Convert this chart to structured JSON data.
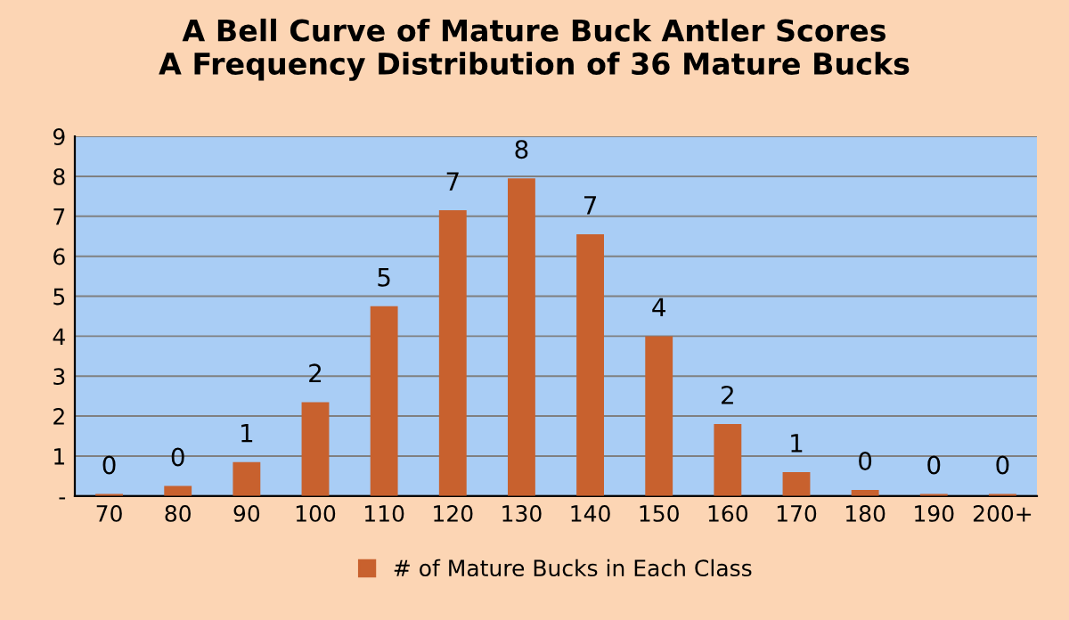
{
  "chart_data": {
    "type": "bar",
    "title": "A Bell Curve of Mature Buck Antler Scores\nA Frequency Distribution of 36 Mature Bucks",
    "categories": [
      "70",
      "80",
      "90",
      "100",
      "110",
      "120",
      "130",
      "140",
      "150",
      "160",
      "170",
      "180",
      "190",
      "200+"
    ],
    "series": [
      {
        "name": "# of Mature Bucks in Each Class",
        "color": "#c8612e",
        "values": [
          0.05,
          0.25,
          0.85,
          2.35,
          4.75,
          7.15,
          7.95,
          6.55,
          4.0,
          1.8,
          0.6,
          0.15,
          0.05,
          0.05
        ],
        "value_labels": [
          "0",
          "0",
          "1",
          "2",
          "5",
          "7",
          "8",
          "7",
          "4",
          "2",
          "1",
          "0",
          "0",
          "0"
        ]
      }
    ],
    "ylim": [
      0,
      9
    ],
    "yticks": [
      {
        "value": 0,
        "label": "-"
      },
      1,
      2,
      3,
      4,
      5,
      6,
      7,
      8,
      9
    ],
    "grid": "y",
    "legend": "bottom"
  }
}
